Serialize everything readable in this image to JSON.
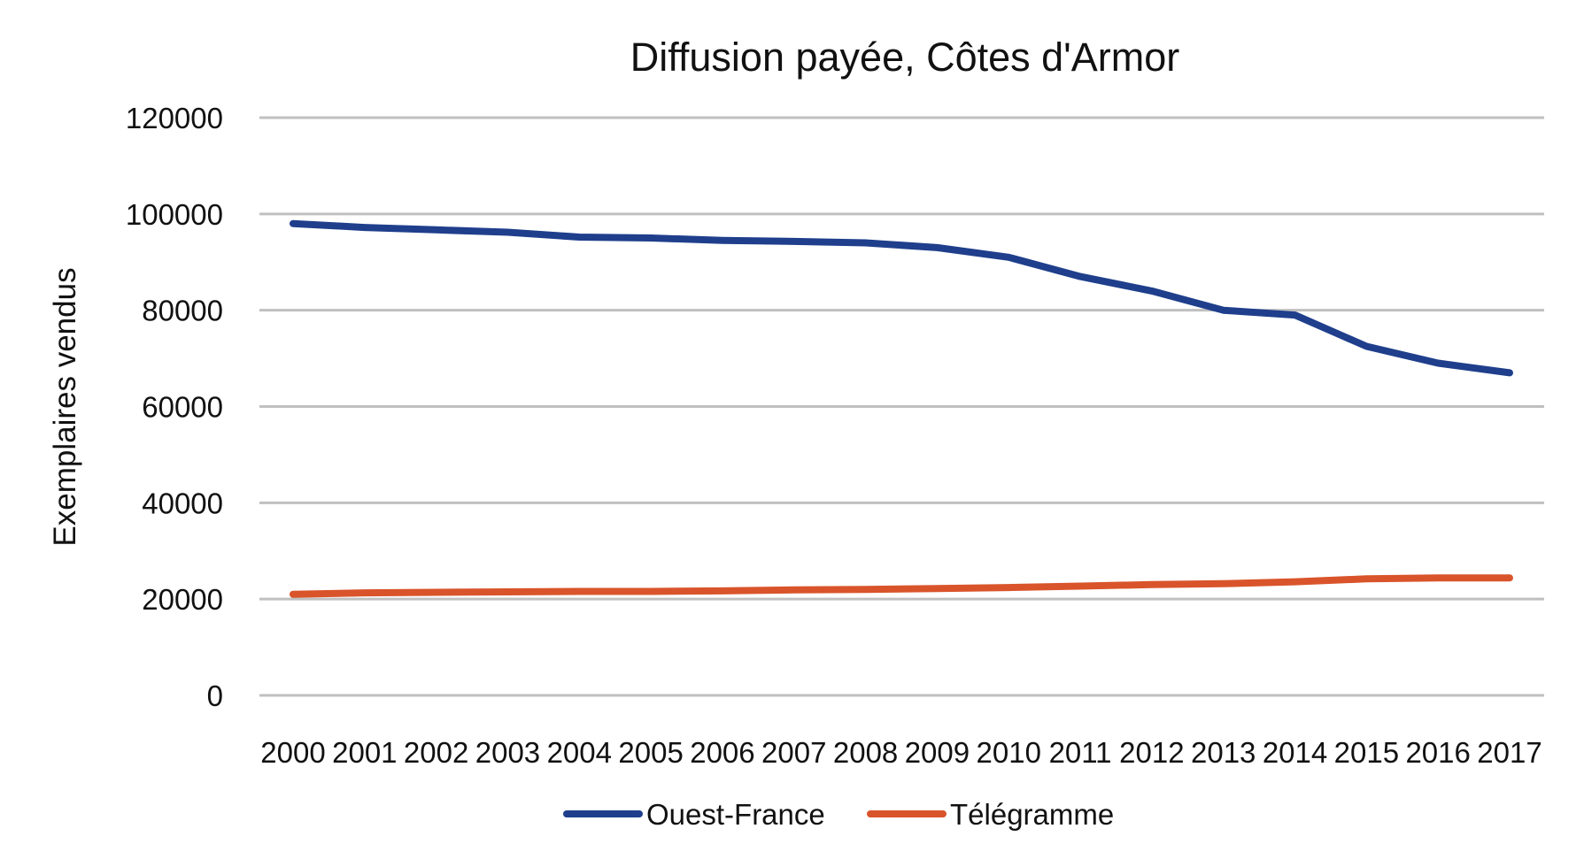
{
  "chart_data": {
    "type": "line",
    "title": "Diffusion payée, Côtes d'Armor",
    "xlabel": "",
    "ylabel": "Exemplaires vendus",
    "categories": [
      "2000",
      "2001",
      "2002",
      "2003",
      "2004",
      "2005",
      "2006",
      "2007",
      "2008",
      "2009",
      "2010",
      "2011",
      "2012",
      "2013",
      "2014",
      "2015",
      "2016",
      "2017"
    ],
    "ylim": [
      0,
      120000
    ],
    "yticks": [
      0,
      20000,
      40000,
      60000,
      80000,
      100000,
      120000
    ],
    "ytick_labels": [
      "0",
      "20000",
      "40000",
      "60000",
      "80000",
      "100000",
      "120000"
    ],
    "grid": true,
    "legend_position": "bottom",
    "series": [
      {
        "name": "Ouest-France",
        "color": "#1f3f8c",
        "values": [
          98000,
          97200,
          96700,
          96200,
          95200,
          95000,
          94500,
          94300,
          94000,
          93000,
          91000,
          87000,
          84000,
          80000,
          79000,
          72500,
          69000,
          67000
        ]
      },
      {
        "name": "Télégramme",
        "color": "#d9542b",
        "values": [
          21000,
          21300,
          21400,
          21500,
          21600,
          21600,
          21700,
          21900,
          22000,
          22200,
          22400,
          22700,
          23000,
          23200,
          23600,
          24200,
          24400,
          24400
        ]
      }
    ]
  }
}
